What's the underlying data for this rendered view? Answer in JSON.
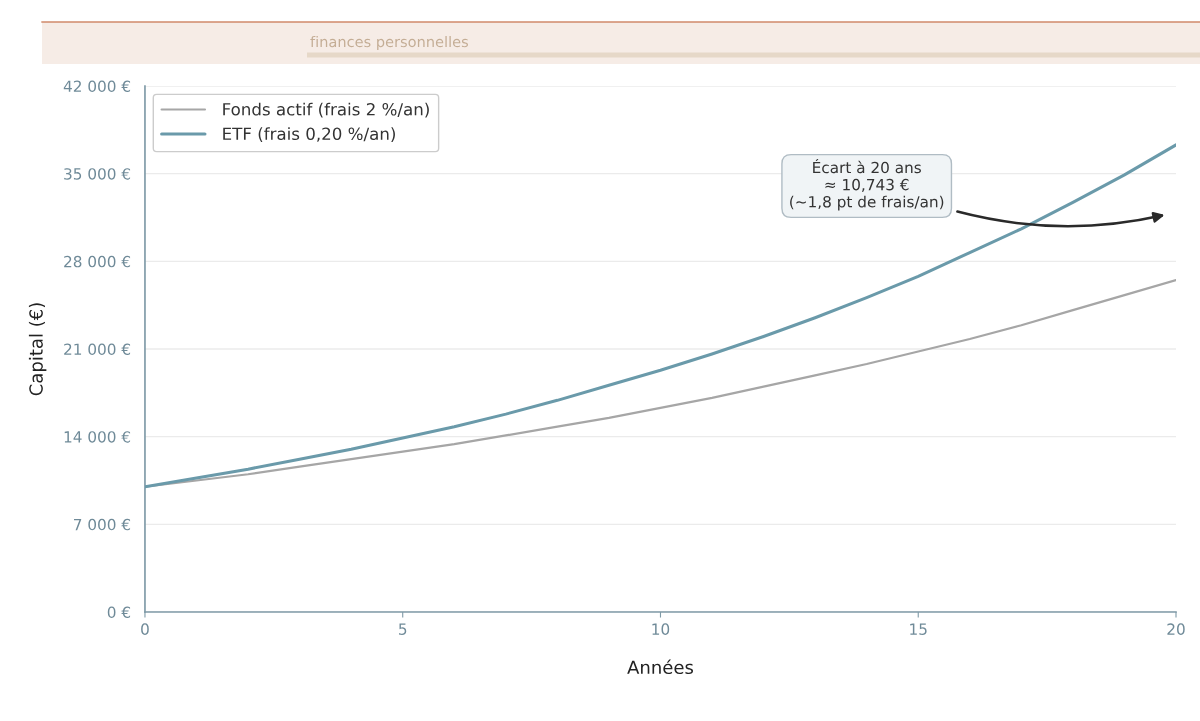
{
  "chart_data": {
    "type": "line",
    "subtitle": "finances personnelles",
    "xlabel": "Années",
    "ylabel": "Capital (€)",
    "x": [
      0,
      1,
      2,
      3,
      4,
      5,
      6,
      7,
      8,
      9,
      10,
      11,
      12,
      13,
      14,
      15,
      16,
      17,
      18,
      19,
      20
    ],
    "series": [
      {
        "name": "Fonds actif (frais 2 %/an)",
        "color": "#a6a6a6",
        "values": [
          10000,
          10500,
          11000,
          11600,
          12200,
          12800,
          13400,
          14100,
          14800,
          15500,
          16300,
          17100,
          18000,
          18900,
          19800,
          20800,
          21800,
          22900,
          24100,
          25300,
          26500
        ]
      },
      {
        "name": "ETF (frais 0,20 %/an)",
        "color": "#6a9aaa",
        "values": [
          10000,
          10700,
          11400,
          12200,
          13000,
          13900,
          14800,
          15800,
          16900,
          18100,
          19300,
          20600,
          22000,
          23500,
          25100,
          26800,
          28700,
          30600,
          32700,
          34900,
          37300
        ]
      }
    ],
    "xlim": [
      0,
      20
    ],
    "xticks": [
      0,
      5,
      10,
      15,
      20
    ],
    "ylim": [
      0,
      42000
    ],
    "yticks": [
      {
        "value": 0,
        "label": "0 €"
      },
      {
        "value": 7000,
        "label": "7 000 €"
      },
      {
        "value": 14000,
        "label": "14 000 €"
      },
      {
        "value": 21000,
        "label": "21 000 €"
      },
      {
        "value": 28000,
        "label": "28 000 €"
      },
      {
        "value": 35000,
        "label": "35 000 €"
      },
      {
        "value": 42000,
        "label": "42 000 €"
      }
    ],
    "annotations": [
      "Écart à 20 ans\n≈ 10,743 €\n(~1,8 pt de frais/an)"
    ],
    "grid": "y",
    "legend": "top left"
  }
}
